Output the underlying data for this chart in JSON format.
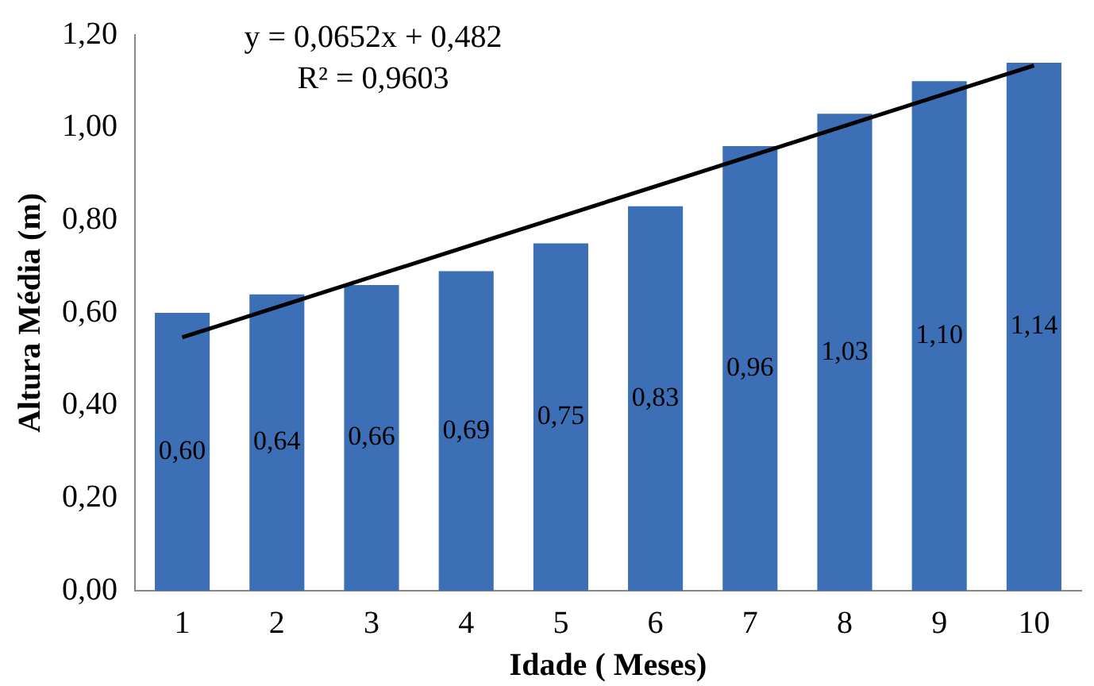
{
  "chart_data": {
    "type": "bar",
    "xlabel": "Idade ( Meses)",
    "ylabel": "Altura Média (m)",
    "x": [
      1,
      2,
      3,
      4,
      5,
      6,
      7,
      8,
      9,
      10
    ],
    "xlim": [
      0.5,
      10.5
    ],
    "xticks": [
      1,
      2,
      3,
      4,
      5,
      6,
      7,
      8,
      9,
      10
    ],
    "ylim": [
      0,
      1.2
    ],
    "yticks": [
      {
        "value": 0,
        "label": "0,00"
      },
      {
        "value": 0.2,
        "label": "0,20"
      },
      {
        "value": 0.4,
        "label": "0,40"
      },
      {
        "value": 0.6,
        "label": "0,60"
      },
      {
        "value": 0.8,
        "label": "0,80"
      },
      {
        "value": 1,
        "label": "1,00"
      },
      {
        "value": 1.2,
        "label": "1,20"
      }
    ],
    "grid": false,
    "legend": false,
    "series": [
      {
        "color": "#3d6fb6",
        "values": [
          0.6,
          0.64,
          0.66,
          0.69,
          0.75,
          0.83,
          0.96,
          1.03,
          1.1,
          1.14
        ],
        "value_labels": [
          "0,60",
          "0,64",
          "0,66",
          "0,69",
          "0,75",
          "0,83",
          "0,96",
          "1,03",
          "1,10",
          "1,14"
        ]
      },
      {
        "type": "line",
        "color": "#000000",
        "x": [
          1,
          10
        ],
        "values": [
          0.547,
          1.134
        ],
        "marker": "none"
      }
    ],
    "annotations": [
      "y = 0,0652x + 0,482",
      "R² = 0,9603"
    ]
  }
}
